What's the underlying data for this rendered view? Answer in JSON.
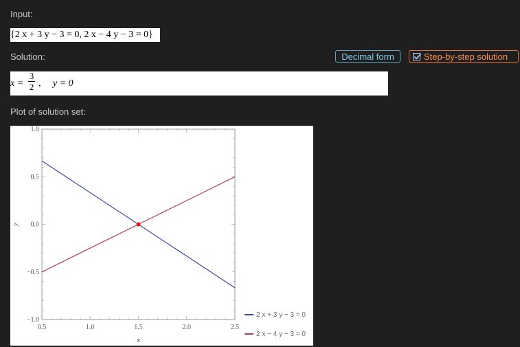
{
  "input": {
    "label": "Input:",
    "text": "{2 x + 3 y − 3 = 0, 2 x − 4 y − 3 = 0}"
  },
  "solution": {
    "label": "Solution:",
    "x_var": "x =",
    "x_num": "3",
    "x_den": "2",
    "sep": ",",
    "y_text": "y = 0"
  },
  "buttons": {
    "decimal_form": "Decimal form",
    "step_by_step": "Step-by-step solution",
    "step_checked": true
  },
  "plot": {
    "label": "Plot of solution set:"
  },
  "colors": {
    "series1": "#3a46a6",
    "series2": "#b0385a",
    "point": "#e8141e",
    "decimal_accent": "#7cc7ea",
    "step_accent": "#ff8a4a"
  },
  "chart_data": {
    "type": "line",
    "xlabel": "x",
    "ylabel": "y",
    "xlim": [
      0.5,
      2.5
    ],
    "ylim": [
      -1.0,
      1.0
    ],
    "x_ticks": [
      "0.5",
      "1.0",
      "1.5",
      "2.0",
      "2.5"
    ],
    "y_ticks": [
      "1.0",
      "0.5",
      "0.0",
      "−0.5",
      "−1.0"
    ],
    "series": [
      {
        "name": "2 x + 3 y − 3 = 0",
        "x": [
          0.5,
          2.5
        ],
        "y": [
          0.6667,
          -0.6667
        ]
      },
      {
        "name": "2 x − 4 y − 3 = 0",
        "x": [
          0.5,
          2.5
        ],
        "y": [
          -0.5,
          0.5
        ]
      }
    ],
    "intersection": {
      "x": 1.5,
      "y": 0.0
    },
    "grid": false,
    "legend": "bottom-right"
  }
}
